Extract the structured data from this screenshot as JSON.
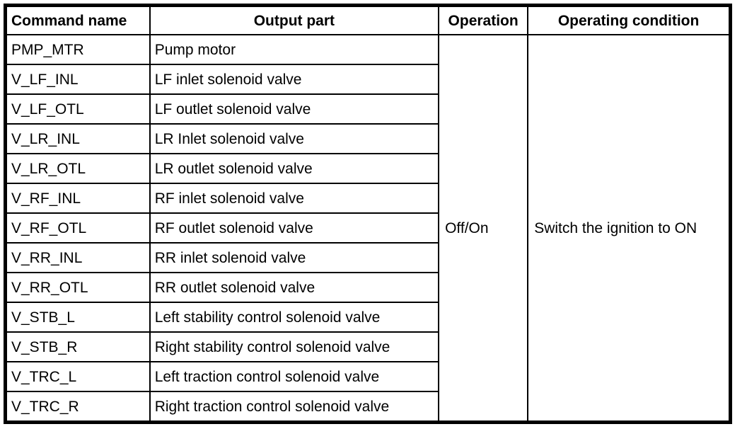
{
  "table": {
    "headers": [
      {
        "label": "Command name"
      },
      {
        "label": "Output part"
      },
      {
        "label": "Operation"
      },
      {
        "label": "Operating condition"
      }
    ],
    "rows": [
      {
        "command": "PMP_MTR",
        "output_part": "Pump motor"
      },
      {
        "command": "V_LF_INL",
        "output_part": "LF inlet solenoid valve"
      },
      {
        "command": "V_LF_OTL",
        "output_part": "LF outlet solenoid valve"
      },
      {
        "command": "V_LR_INL",
        "output_part": "LR Inlet solenoid valve"
      },
      {
        "command": "V_LR_OTL",
        "output_part": "LR outlet solenoid valve"
      },
      {
        "command": "V_RF_INL",
        "output_part": "RF inlet solenoid valve"
      },
      {
        "command": "V_RF_OTL",
        "output_part": "RF outlet solenoid valve"
      },
      {
        "command": "V_RR_INL",
        "output_part": "RR inlet solenoid valve"
      },
      {
        "command": "V_RR_OTL",
        "output_part": "RR outlet solenoid valve"
      },
      {
        "command": "V_STB_L",
        "output_part": "Left stability control solenoid valve"
      },
      {
        "command": "V_STB_R",
        "output_part": "Right stability control solenoid valve"
      },
      {
        "command": "V_TRC_L",
        "output_part": "Left traction control solenoid valve"
      },
      {
        "command": "V_TRC_R",
        "output_part": "Right traction control solenoid valve"
      }
    ],
    "operation": "Off/On",
    "operating_condition": "Switch the ignition to ON"
  },
  "colors": {
    "border": "#000000",
    "background": "#ffffff",
    "text": "#000000"
  }
}
